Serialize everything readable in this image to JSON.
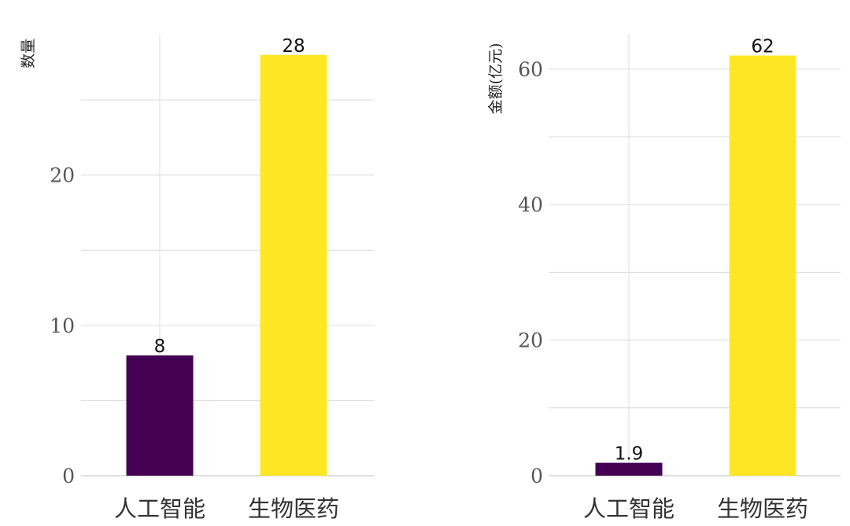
{
  "chart_data": [
    {
      "type": "bar",
      "categories": [
        "人工智能",
        "生物医药"
      ],
      "values": [
        8,
        28
      ],
      "value_labels": [
        "8",
        "28"
      ],
      "colors": [
        "#440154",
        "#FDE725"
      ],
      "title": "",
      "xlabel": "",
      "ylabel": "数量",
      "ylim": [
        0,
        29.4
      ],
      "yticks": [
        0,
        10,
        20
      ],
      "ytick_labels": [
        "0",
        "10",
        "20"
      ],
      "grid": true
    },
    {
      "type": "bar",
      "categories": [
        "人工智能",
        "生物医药"
      ],
      "values": [
        1.9,
        62
      ],
      "value_labels": [
        "1.9",
        "62"
      ],
      "colors": [
        "#440154",
        "#FDE725"
      ],
      "title": "",
      "xlabel": "",
      "ylabel": "金额(亿元)",
      "ylim": [
        0,
        65.2
      ],
      "yticks": [
        0,
        20,
        40,
        60
      ],
      "ytick_labels": [
        "0",
        "20",
        "40",
        "60"
      ],
      "grid": true
    }
  ]
}
